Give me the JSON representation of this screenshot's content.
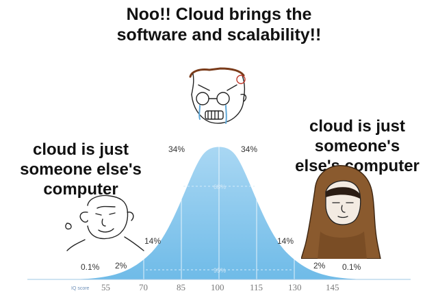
{
  "title_line1": "Noo!! Cloud brings the",
  "title_line2": "software and scalability!!",
  "left_line1": "cloud is just",
  "left_line2": "someone else's",
  "left_line3": "computer",
  "right_line1": "cloud is just",
  "right_line2": "someone's",
  "right_line3": "else's computer",
  "curve": {
    "p_center_left": "34%",
    "p_center_right": "34%",
    "p_mid_left": "14%",
    "p_mid_right": "14%",
    "p_tail_left": "2%",
    "p_tail_right": "2%",
    "p_far_left": "0.1%",
    "p_far_right": "0.1%",
    "p_68": "68%",
    "p_95": "95%",
    "axis_label": "IQ score",
    "ticks": [
      "55",
      "70",
      "85",
      "100",
      "115",
      "130",
      "145"
    ]
  },
  "colors": {
    "curve_fill": "#9ed1f0",
    "curve_dark": "#5fb3e6",
    "tick_line": "#9ec7e6"
  }
}
